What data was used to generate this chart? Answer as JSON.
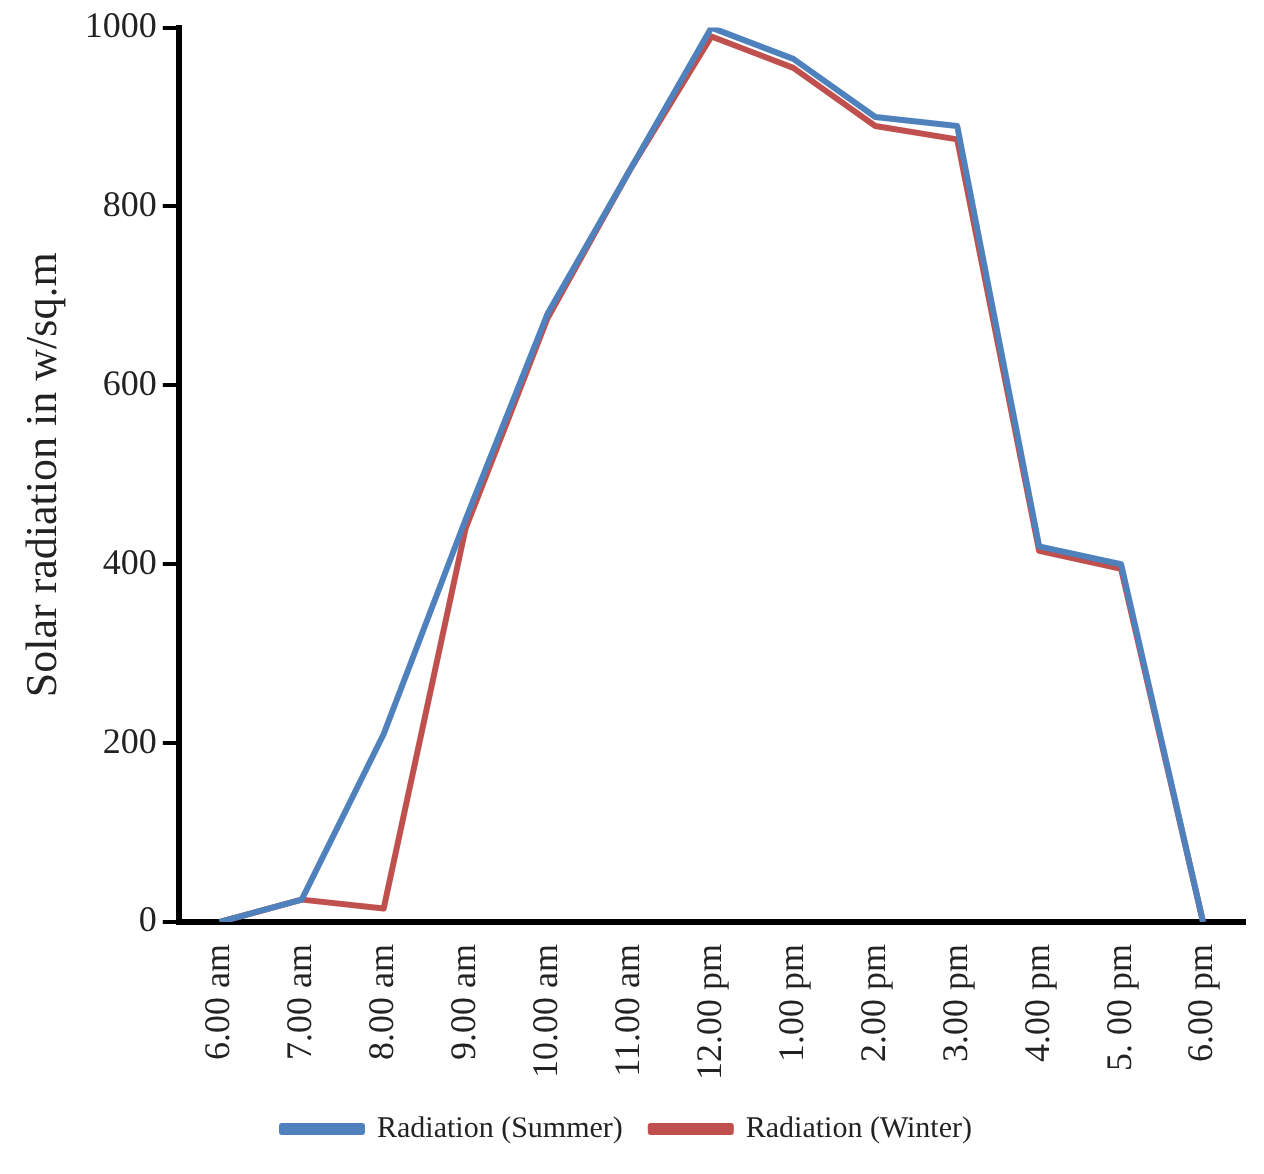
{
  "chart_data": {
    "type": "line",
    "ylabel": "Solar radiation in w/sq.m",
    "categories": [
      "6.00 am",
      "7.00 am",
      "8.00 am",
      "9.00 am",
      "10.00 am",
      "11.00 am",
      "12.00 pm",
      "1.00 pm",
      "2.00 pm",
      "3.00 pm",
      "4.00 pm",
      "5. 00 pm",
      "6.00 pm"
    ],
    "series": [
      {
        "name": "Radiation (Summer)",
        "color": "#4f81bd",
        "values": [
          0,
          25,
          210,
          450,
          680,
          840,
          1000,
          965,
          900,
          890,
          420,
          400,
          0
        ]
      },
      {
        "name": "Radiation (Winter)",
        "color": "#c0504d",
        "values": [
          0,
          25,
          15,
          440,
          675,
          840,
          990,
          955,
          890,
          875,
          415,
          395,
          0
        ]
      }
    ],
    "ylim": [
      0,
      1000
    ],
    "yticks": [
      0,
      200,
      400,
      600,
      800,
      1000
    ],
    "grid": false,
    "legend": "bottom",
    "marker": "none",
    "line_style": "solid"
  }
}
